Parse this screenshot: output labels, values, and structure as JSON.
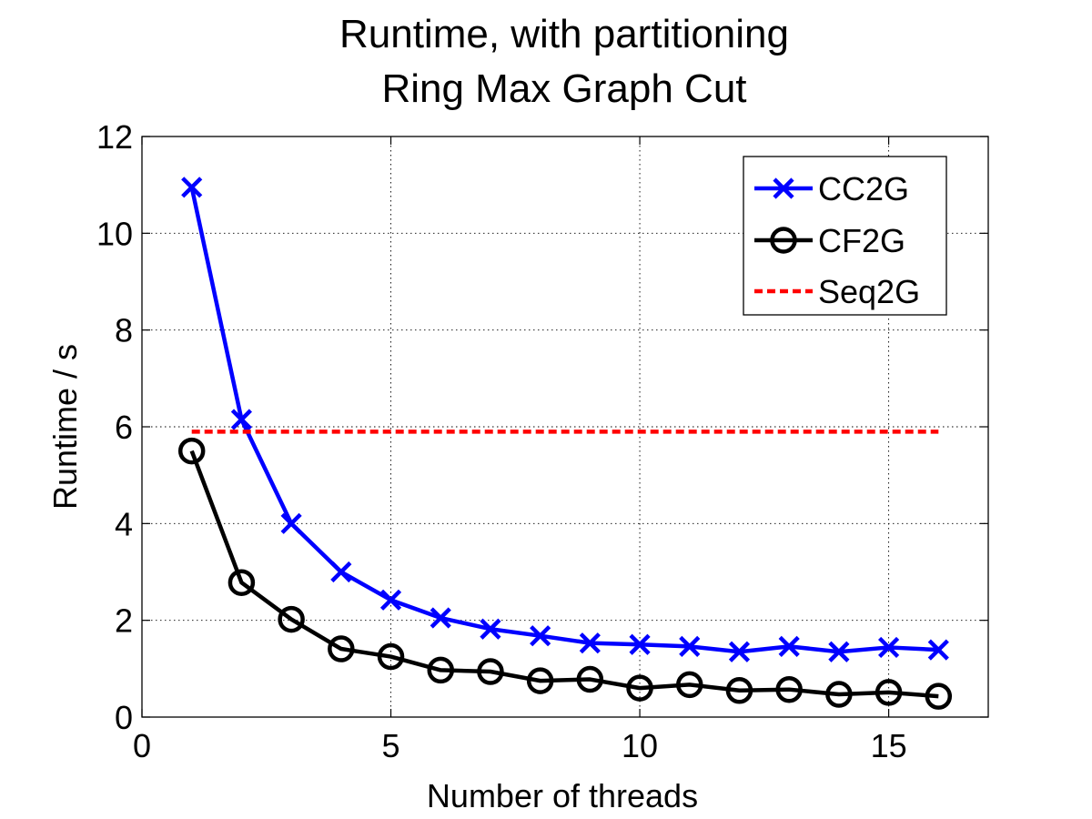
{
  "chart_data": {
    "type": "line",
    "title": [
      "Runtime, with partitioning",
      "Ring Max Graph Cut"
    ],
    "xlabel": "Number of threads",
    "ylabel": "Runtime / s",
    "xlim": [
      0,
      17
    ],
    "ylim": [
      0,
      12
    ],
    "xticks": [
      0,
      5,
      10,
      15
    ],
    "yticks": [
      0,
      2,
      4,
      6,
      8,
      10,
      12
    ],
    "grid": true,
    "legend_position": "top-right",
    "series": [
      {
        "name": "CC2G",
        "color": "#0000ff",
        "marker": "x",
        "line_style": "solid",
        "x": [
          1,
          2,
          3,
          4,
          5,
          6,
          7,
          8,
          9,
          10,
          11,
          12,
          13,
          14,
          15,
          16
        ],
        "values": [
          10.95,
          6.15,
          4.0,
          3.0,
          2.42,
          2.05,
          1.82,
          1.68,
          1.53,
          1.5,
          1.46,
          1.35,
          1.46,
          1.35,
          1.44,
          1.39
        ]
      },
      {
        "name": "CF2G",
        "color": "#000000",
        "marker": "circle",
        "line_style": "solid",
        "x": [
          1,
          2,
          3,
          4,
          5,
          6,
          7,
          8,
          9,
          10,
          11,
          12,
          13,
          14,
          15,
          16
        ],
        "values": [
          5.5,
          2.78,
          2.02,
          1.41,
          1.25,
          0.97,
          0.94,
          0.75,
          0.78,
          0.6,
          0.67,
          0.55,
          0.57,
          0.47,
          0.51,
          0.43
        ]
      },
      {
        "name": "Seq2G",
        "color": "#ff0000",
        "marker": "none",
        "line_style": "dashed",
        "x": [
          1,
          16
        ],
        "values": [
          5.9,
          5.9
        ]
      }
    ]
  }
}
